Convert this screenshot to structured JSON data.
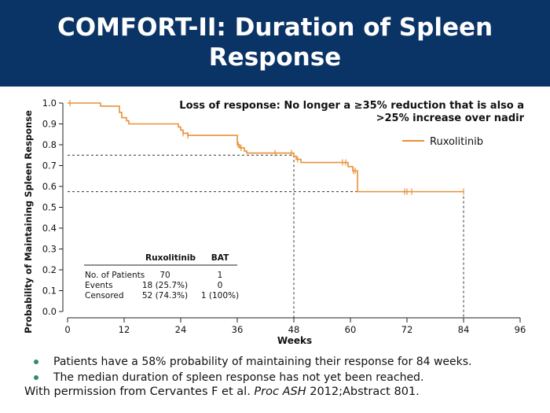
{
  "header": {
    "title_line1": "COMFORT-II: Duration of Spleen",
    "title_line2": "Response"
  },
  "chart_data": {
    "type": "line",
    "xlabel": "Weeks",
    "ylabel": "Probability of Maintaining Spleen Response",
    "xlim": [
      0,
      96
    ],
    "ylim": [
      0,
      1.0
    ],
    "x_ticks": [
      0,
      12,
      24,
      36,
      48,
      60,
      72,
      84,
      96
    ],
    "y_ticks": [
      0.0,
      0.1,
      0.2,
      0.3,
      0.4,
      0.5,
      0.6,
      0.7,
      0.8,
      0.9,
      1.0
    ],
    "annotation": "Loss of response: No longer a ≥35% reduction that is also a >25% increase over nadir",
    "legend_position": "top-right",
    "series": [
      {
        "name": "Ruxolitinib",
        "color": "#e8913a",
        "steps": [
          [
            0,
            1.0
          ],
          [
            7,
            0.985
          ],
          [
            11,
            0.955
          ],
          [
            11.5,
            0.93
          ],
          [
            12.5,
            0.915
          ],
          [
            13,
            0.9
          ],
          [
            23.5,
            0.885
          ],
          [
            24,
            0.87
          ],
          [
            24.5,
            0.855
          ],
          [
            25.5,
            0.845
          ],
          [
            36,
            0.8
          ],
          [
            36.5,
            0.785
          ],
          [
            37.5,
            0.77
          ],
          [
            38,
            0.76
          ],
          [
            48,
            0.745
          ],
          [
            48.5,
            0.73
          ],
          [
            49.5,
            0.715
          ],
          [
            59.5,
            0.695
          ],
          [
            60.5,
            0.675
          ],
          [
            61.5,
            0.575
          ],
          [
            84,
            0.575
          ]
        ],
        "censor_marks": [
          [
            0.5,
            1.0
          ],
          [
            24.5,
            0.855
          ],
          [
            25.5,
            0.845
          ],
          [
            36.2,
            0.8
          ],
          [
            36.8,
            0.785
          ],
          [
            44,
            0.76
          ],
          [
            47.5,
            0.76
          ],
          [
            48.8,
            0.73
          ],
          [
            58.3,
            0.715
          ],
          [
            59,
            0.715
          ],
          [
            60.6,
            0.675
          ],
          [
            61,
            0.675
          ],
          [
            71.5,
            0.575
          ],
          [
            72,
            0.575
          ],
          [
            73,
            0.575
          ],
          [
            84,
            0.575
          ]
        ]
      }
    ],
    "reference_lines": [
      {
        "y": 0.75,
        "x": 48
      },
      {
        "y": 0.575,
        "x": 84
      }
    ],
    "table": {
      "headers": [
        "",
        "Ruxolitinib",
        "BAT"
      ],
      "rows": [
        [
          "No. of Patients",
          "70",
          "1"
        ],
        [
          "Events",
          "18 (25.7%)",
          "0"
        ],
        [
          "Censored",
          "52 (74.3%)",
          "1 (100%)"
        ]
      ]
    }
  },
  "bullets": [
    "Patients have a 58% probability of maintaining their response for 84 weeks.",
    "The median duration of spleen response has not yet been reached."
  ],
  "permission": {
    "prefix": "With permission from Cervantes F et al. ",
    "journal": "Proc ASH",
    "suffix": " 2012;Abstract 801."
  }
}
